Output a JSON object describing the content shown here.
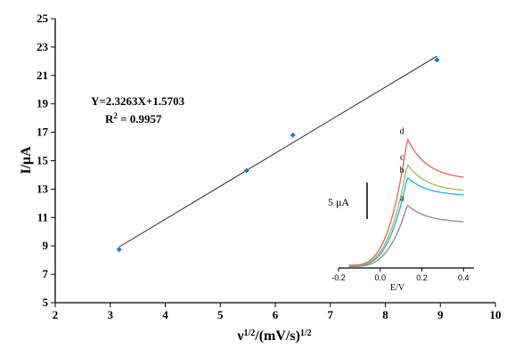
{
  "chart_data": [
    {
      "type": "scatter",
      "x": [
        3.16,
        5.48,
        6.32,
        8.94
      ],
      "y": [
        8.75,
        14.3,
        16.8,
        22.1
      ],
      "xlabel_main": "ν",
      "xlabel_sup": "1/2",
      "xlabel_mid": "/(mV/s)",
      "xlabel_sup2": "1/2",
      "ylabel": "I/μA",
      "xlim": [
        2,
        10
      ],
      "ylim": [
        5,
        25
      ],
      "xticks": [
        "2",
        "3",
        "4",
        "5",
        "6",
        "7",
        "8",
        "9",
        "10"
      ],
      "yticks": [
        "5",
        "7",
        "9",
        "11",
        "13",
        "15",
        "17",
        "19",
        "21",
        "23",
        "25"
      ],
      "fit": {
        "slope": 2.3263,
        "intercept": 1.5703,
        "x_range": [
          3.16,
          8.94
        ]
      },
      "equation": "Y=2.3263X+1.5703",
      "r2_prefix": "R",
      "r2_sup": "2",
      "r2_value": " = 0.9957",
      "marker_color": "#1f77c8",
      "grid": false
    },
    {
      "type": "line",
      "xlabel": "E/V",
      "xlim": [
        -0.2,
        0.45
      ],
      "xticks": [
        "-0.2",
        "0.0",
        "0.2",
        "0.4"
      ],
      "scale_bar_label": "5 μA",
      "series": [
        {
          "name": "a",
          "color": "#9b7a98",
          "peak": 11.8,
          "end": 10.0
        },
        {
          "name": "b",
          "color": "#1fb5d8",
          "peak": 14.8,
          "end": 12.9
        },
        {
          "name": "c",
          "color": "#a9b65a",
          "peak": 16.2,
          "end": 13.4
        },
        {
          "name": "d",
          "color": "#e0625e",
          "peak": 19.0,
          "end": 14.8
        }
      ]
    }
  ]
}
